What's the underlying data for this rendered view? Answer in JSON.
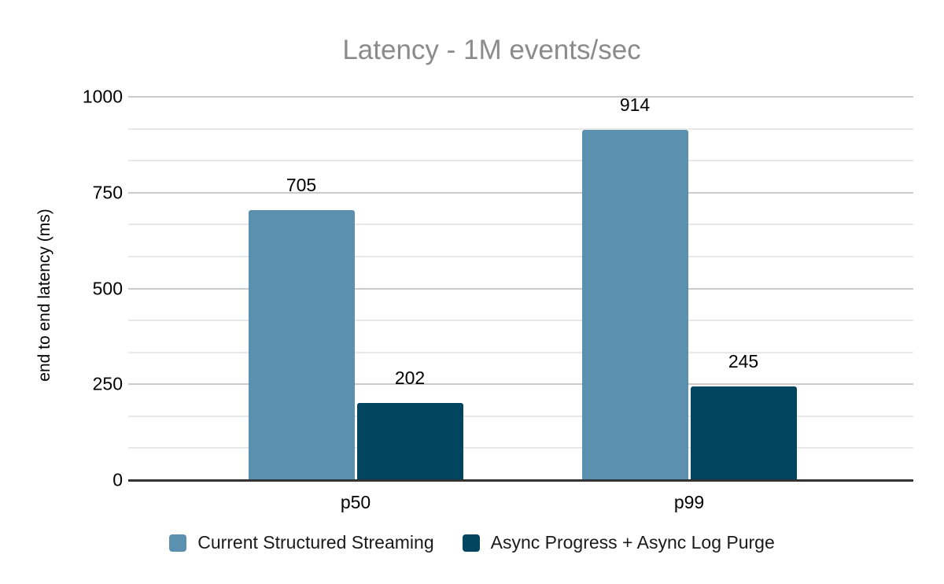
{
  "chart_data": {
    "type": "bar",
    "title": "Latency - 1M events/sec",
    "ylabel": "end to end latency (ms)",
    "xlabel": "",
    "categories": [
      "p50",
      "p99"
    ],
    "series": [
      {
        "name": "Current Structured Streaming",
        "color": "#5B91AE",
        "values": [
          705,
          914
        ]
      },
      {
        "name": "Async Progress + Async Log Purge",
        "color": "#014560",
        "values": [
          202,
          245
        ]
      }
    ],
    "ylim": [
      0,
      1000
    ],
    "yticks": [
      0,
      250,
      500,
      750,
      1000
    ],
    "minor_ticks_per_major": 3,
    "grid": true,
    "data_labels_shown": true,
    "legend_position": "bottom"
  },
  "style": {
    "background": "#ffffff",
    "title_color": "#8B8B8B",
    "text_color": "#000000",
    "axis_line_color": "#333333",
    "major_gridline_color": "#CBCBCB",
    "minor_gridline_color": "#E8E8E8"
  }
}
